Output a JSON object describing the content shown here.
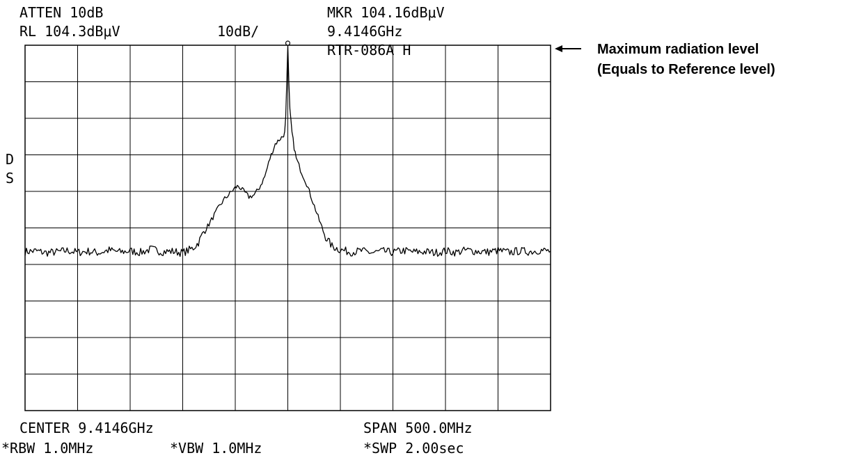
{
  "header": {
    "atten": "ATTEN 10dB",
    "ref_level": "RL 104.3dBμV",
    "scale": "10dB/",
    "marker_level": "MKR 104.16dBμV",
    "marker_freq": "9.4146GHz",
    "model": "RTR-086A H"
  },
  "side": {
    "detector_d": "D",
    "detector_s": "S"
  },
  "footer": {
    "center": "CENTER 9.4146GHz",
    "span": "SPAN 500.0MHz",
    "rbw": "*RBW 1.0MHz",
    "vbw": "*VBW 1.0MHz",
    "swp": "*SWP 2.00sec"
  },
  "annotation": {
    "line1": "Maximum radiation level",
    "line2": "(Equals to Reference level)"
  },
  "chart_data": {
    "type": "line",
    "title": "",
    "xlabel": "",
    "ylabel": "",
    "x_unit": "MHz offset from center",
    "y_unit": "dB below reference level",
    "xlim": [
      -250,
      250
    ],
    "ylim": [
      -100,
      0
    ],
    "divisions": {
      "x": 10,
      "y": 10
    },
    "grid": true,
    "reference_level_dBuV": 104.3,
    "db_per_div": 10,
    "marker": {
      "freq_GHz": 9.4146,
      "level_dBuV": 104.16
    },
    "series": [
      {
        "points": [
          [
            -250,
            -56.5
          ],
          [
            -240,
            -56.3
          ],
          [
            -230,
            -56.8
          ],
          [
            -220,
            -56.6
          ],
          [
            -210,
            -56.2
          ],
          [
            -200,
            -56.7
          ],
          [
            -190,
            -56.4
          ],
          [
            -180,
            -56.8
          ],
          [
            -170,
            -56.1
          ],
          [
            -160,
            -56.6
          ],
          [
            -150,
            -56.3
          ],
          [
            -140,
            -56.7
          ],
          [
            -130,
            -55.8
          ],
          [
            -120,
            -56.5
          ],
          [
            -110,
            -56.4
          ],
          [
            -100,
            -56.8
          ],
          [
            -95,
            -56.2
          ],
          [
            -90,
            -55.5
          ],
          [
            -85,
            -54.0
          ],
          [
            -80,
            -51.0
          ],
          [
            -75,
            -49.0
          ],
          [
            -70,
            -46.5
          ],
          [
            -65,
            -44.0
          ],
          [
            -60,
            -42.0
          ],
          [
            -55,
            -40.5
          ],
          [
            -50,
            -39.0
          ],
          [
            -47,
            -38.5
          ],
          [
            -42,
            -40.0
          ],
          [
            -37,
            -41.5
          ],
          [
            -32,
            -41.0
          ],
          [
            -27,
            -39.0
          ],
          [
            -22,
            -36.0
          ],
          [
            -17,
            -31.0
          ],
          [
            -12,
            -27.0
          ],
          [
            -7,
            -25.5
          ],
          [
            -5,
            -25.0
          ],
          [
            -3,
            -24.0
          ],
          [
            -2,
            -20.0
          ],
          [
            -1,
            -10.0
          ],
          [
            0,
            0
          ],
          [
            1,
            -10.0
          ],
          [
            2,
            -18.0
          ],
          [
            4,
            -24.0
          ],
          [
            6,
            -28.0
          ],
          [
            8,
            -31.0
          ],
          [
            12,
            -34.0
          ],
          [
            18,
            -38.0
          ],
          [
            24,
            -43.0
          ],
          [
            30,
            -48.0
          ],
          [
            36,
            -52.5
          ],
          [
            42,
            -55.0
          ],
          [
            50,
            -56.0
          ],
          [
            60,
            -56.6
          ],
          [
            70,
            -56.3
          ],
          [
            80,
            -56.8
          ],
          [
            90,
            -56.4
          ],
          [
            100,
            -56.7
          ],
          [
            110,
            -56.2
          ],
          [
            120,
            -56.6
          ],
          [
            130,
            -56.5
          ],
          [
            140,
            -56.8
          ],
          [
            150,
            -56.3
          ],
          [
            160,
            -56.7
          ],
          [
            170,
            -56.1
          ],
          [
            180,
            -56.4
          ],
          [
            190,
            -56.6
          ],
          [
            200,
            -56.2
          ],
          [
            210,
            -56.7
          ],
          [
            220,
            -56.3
          ],
          [
            230,
            -56.5
          ],
          [
            240,
            -56.1
          ],
          [
            250,
            -56.4
          ]
        ]
      }
    ]
  }
}
